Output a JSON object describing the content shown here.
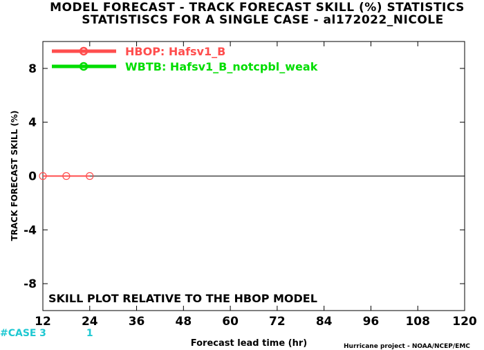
{
  "chart_data": {
    "type": "line",
    "title": "MODEL FORECAST - TRACK FORECAST SKILL (%) STATISTICS",
    "subtitle": "STATISTISCS FOR A SINGLE CASE - al172022_NICOLE",
    "xlabel": "Forecast lead time (hr)",
    "ylabel": "TRACK FORECAST SKILL (%)",
    "xlim": [
      12,
      120
    ],
    "ylim": [
      -10,
      10
    ],
    "x_ticks": [
      12,
      24,
      36,
      48,
      60,
      72,
      84,
      96,
      108,
      120
    ],
    "y_ticks": [
      -8,
      -4,
      0,
      4,
      8
    ],
    "x_tick_labels": [
      "12",
      "24",
      "36",
      "48",
      "60",
      "72",
      "84",
      "96",
      "108",
      "120"
    ],
    "y_tick_labels": [
      "-8",
      "-4",
      "0",
      "4",
      "8"
    ],
    "grid": false,
    "legend_position": "top-left",
    "series": [
      {
        "name": "HBOP: Hafsv1_B",
        "color": "#ff4d4d",
        "x": [
          12,
          18,
          24
        ],
        "y": [
          0,
          0,
          0
        ]
      },
      {
        "name": "WBTB: Hafsv1_B_notcpbl_weak",
        "color": "#00dd00",
        "x": [],
        "y": []
      }
    ],
    "annotation": "SKILL PLOT RELATIVE TO THE HBOP MODEL",
    "case_counts": {
      "label": "#CASE",
      "x": [
        12,
        24
      ],
      "values": [
        "3",
        "1"
      ]
    },
    "credit": "Hurricane project - NOAA/NCEP/EMC"
  }
}
